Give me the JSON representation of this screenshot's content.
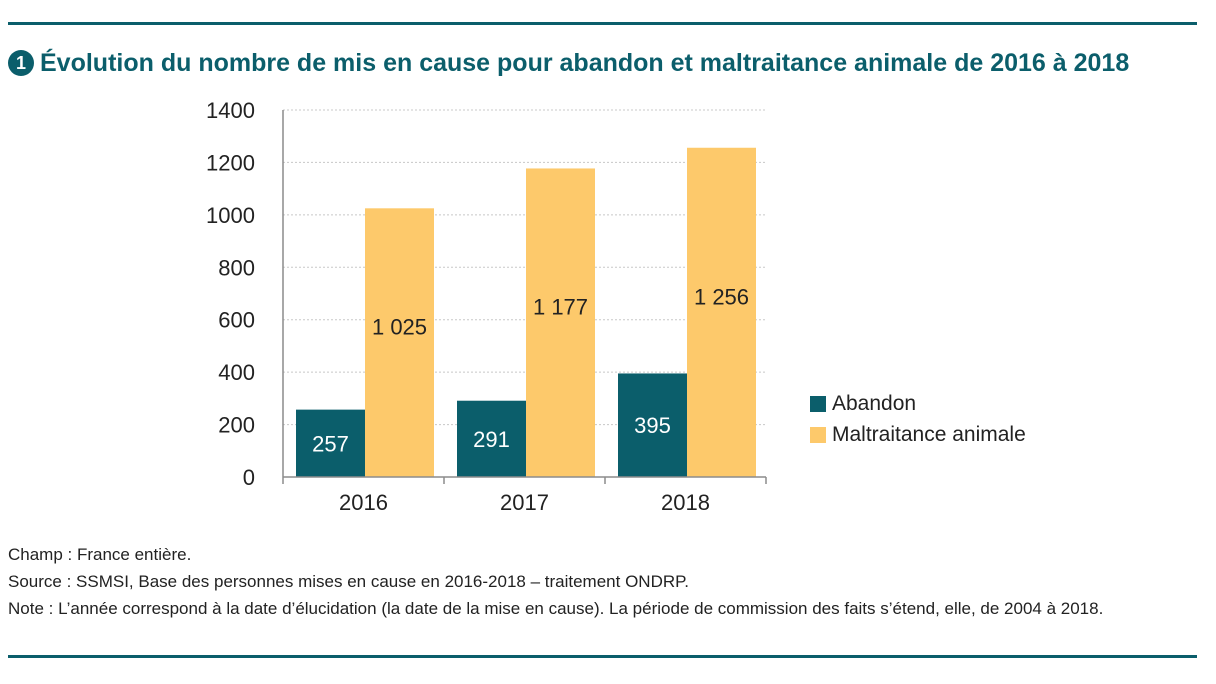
{
  "header": {
    "number_icon": "❶",
    "title": "Évolution du nombre de mis en cause pour abandon et maltraitance animale de 2016 à 2018"
  },
  "colors": {
    "accent": "#0b5e6b",
    "abandon": "#0b5e6b",
    "maltraitance": "#fdc96b",
    "grid": "#c8c8c8"
  },
  "chart_data": {
    "type": "bar",
    "categories": [
      "2016",
      "2017",
      "2018"
    ],
    "series": [
      {
        "name": "Abandon",
        "values": [
          257,
          291,
          395
        ],
        "labels": [
          "257",
          "291",
          "395"
        ]
      },
      {
        "name": "Maltraitance animale",
        "values": [
          1025,
          1177,
          1256
        ],
        "labels": [
          "1 025",
          "1 177",
          "1 256"
        ]
      }
    ],
    "ylim": [
      0,
      1400
    ],
    "yticks": [
      0,
      200,
      400,
      600,
      800,
      1000,
      1200,
      1400
    ],
    "grid": true,
    "legend_position": "right"
  },
  "footer": {
    "champ": "Champ : France entière.",
    "source": "Source : SSMSI, Base des personnes mises en cause en 2016-2018 – traitement ONDRP.",
    "note": "Note : L’année correspond à la date d’élucidation (la date de la mise en cause). La période de commission des faits s’étend, elle, de 2004 à 2018."
  }
}
